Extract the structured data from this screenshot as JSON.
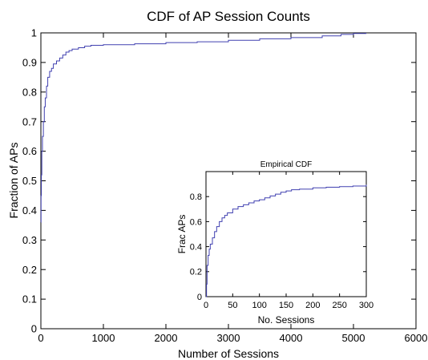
{
  "chart_data": [
    {
      "type": "line",
      "title": "CDF of AP Session Counts",
      "xlabel": "Number of Sessions",
      "ylabel": "Fraction of APs",
      "xlim": [
        0,
        6000
      ],
      "ylim": [
        0,
        1
      ],
      "xticks": [
        0,
        1000,
        2000,
        3000,
        4000,
        5000,
        6000
      ],
      "yticks": [
        0,
        0.1,
        0.2,
        0.3,
        0.4,
        0.5,
        0.6,
        0.7,
        0.8,
        0.9,
        1
      ],
      "grid": false,
      "line_color": "#4040b0",
      "series": [
        {
          "x": [
            0,
            3,
            8,
            15,
            25,
            40,
            55,
            70,
            90,
            110,
            140,
            170,
            200,
            250,
            300,
            350,
            400,
            450,
            500,
            600,
            700,
            800,
            1000,
            1500,
            2000,
            2500,
            3000,
            3500,
            4000,
            4500,
            4800,
            5000,
            5200
          ],
          "y": [
            0.36,
            0.45,
            0.52,
            0.6,
            0.65,
            0.7,
            0.75,
            0.78,
            0.82,
            0.85,
            0.87,
            0.88,
            0.895,
            0.905,
            0.915,
            0.925,
            0.935,
            0.94,
            0.945,
            0.95,
            0.955,
            0.958,
            0.96,
            0.963,
            0.967,
            0.97,
            0.975,
            0.98,
            0.984,
            0.99,
            0.995,
            0.998,
            1.0
          ]
        }
      ]
    },
    {
      "type": "line",
      "title": "Empirical CDF",
      "xlabel": "No. Sessions",
      "ylabel": "Frac APs",
      "xlim": [
        0,
        300
      ],
      "ylim": [
        0,
        1
      ],
      "xticks": [
        0,
        50,
        100,
        150,
        200,
        250,
        300
      ],
      "yticks": [
        0,
        0.2,
        0.4,
        0.6,
        0.8
      ],
      "grid": false,
      "line_color": "#4040b0",
      "series": [
        {
          "x": [
            0,
            1,
            2,
            4,
            6,
            8,
            12,
            16,
            20,
            25,
            30,
            35,
            40,
            50,
            60,
            70,
            80,
            90,
            100,
            110,
            120,
            130,
            140,
            150,
            160,
            175,
            200,
            225,
            250,
            275,
            300
          ],
          "y": [
            0.0,
            0.1,
            0.25,
            0.33,
            0.38,
            0.42,
            0.47,
            0.52,
            0.56,
            0.6,
            0.63,
            0.65,
            0.67,
            0.7,
            0.72,
            0.735,
            0.75,
            0.765,
            0.775,
            0.79,
            0.805,
            0.82,
            0.835,
            0.845,
            0.855,
            0.86,
            0.87,
            0.875,
            0.88,
            0.885,
            0.895
          ]
        }
      ]
    }
  ]
}
